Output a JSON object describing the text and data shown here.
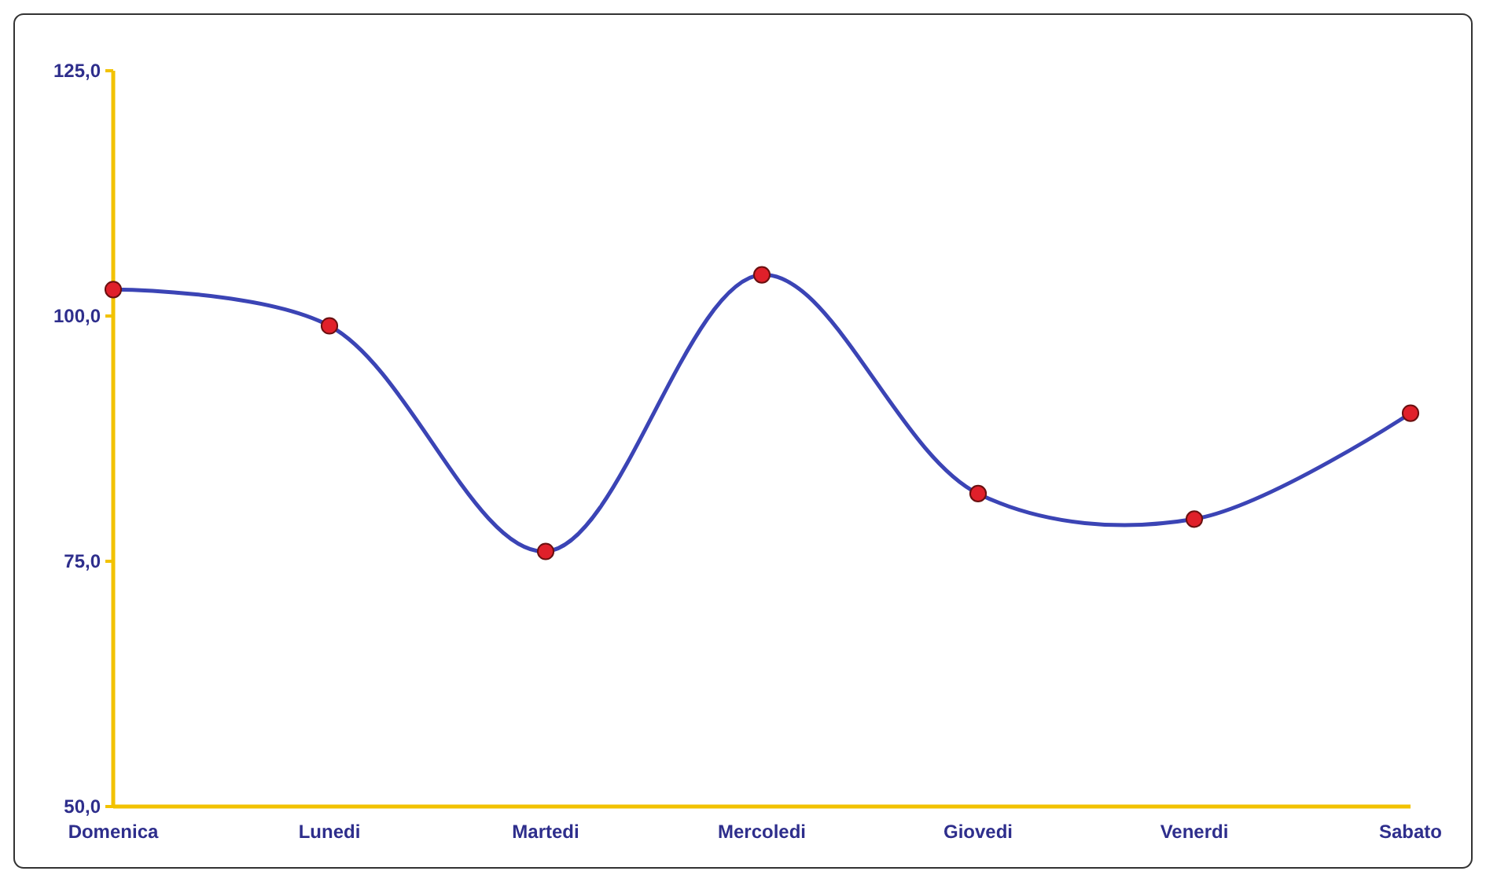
{
  "chart_data": {
    "type": "line",
    "categories": [
      "Domenica",
      "Lunedi",
      "Martedi",
      "Mercoledi",
      "Giovedi",
      "Venerdi",
      "Sabato"
    ],
    "series": [
      {
        "color": "#3b44b5",
        "values": [
          102.7,
          99.0,
          76.0,
          104.2,
          81.9,
          79.3,
          90.1
        ]
      }
    ],
    "ylim": [
      50,
      125
    ],
    "yticks": [
      {
        "value": 50,
        "label": "50,0"
      },
      {
        "value": 75,
        "label": "75,0"
      },
      {
        "value": 100,
        "label": "100,0"
      },
      {
        "value": 125,
        "label": "125,0"
      }
    ],
    "marker": "circle"
  }
}
